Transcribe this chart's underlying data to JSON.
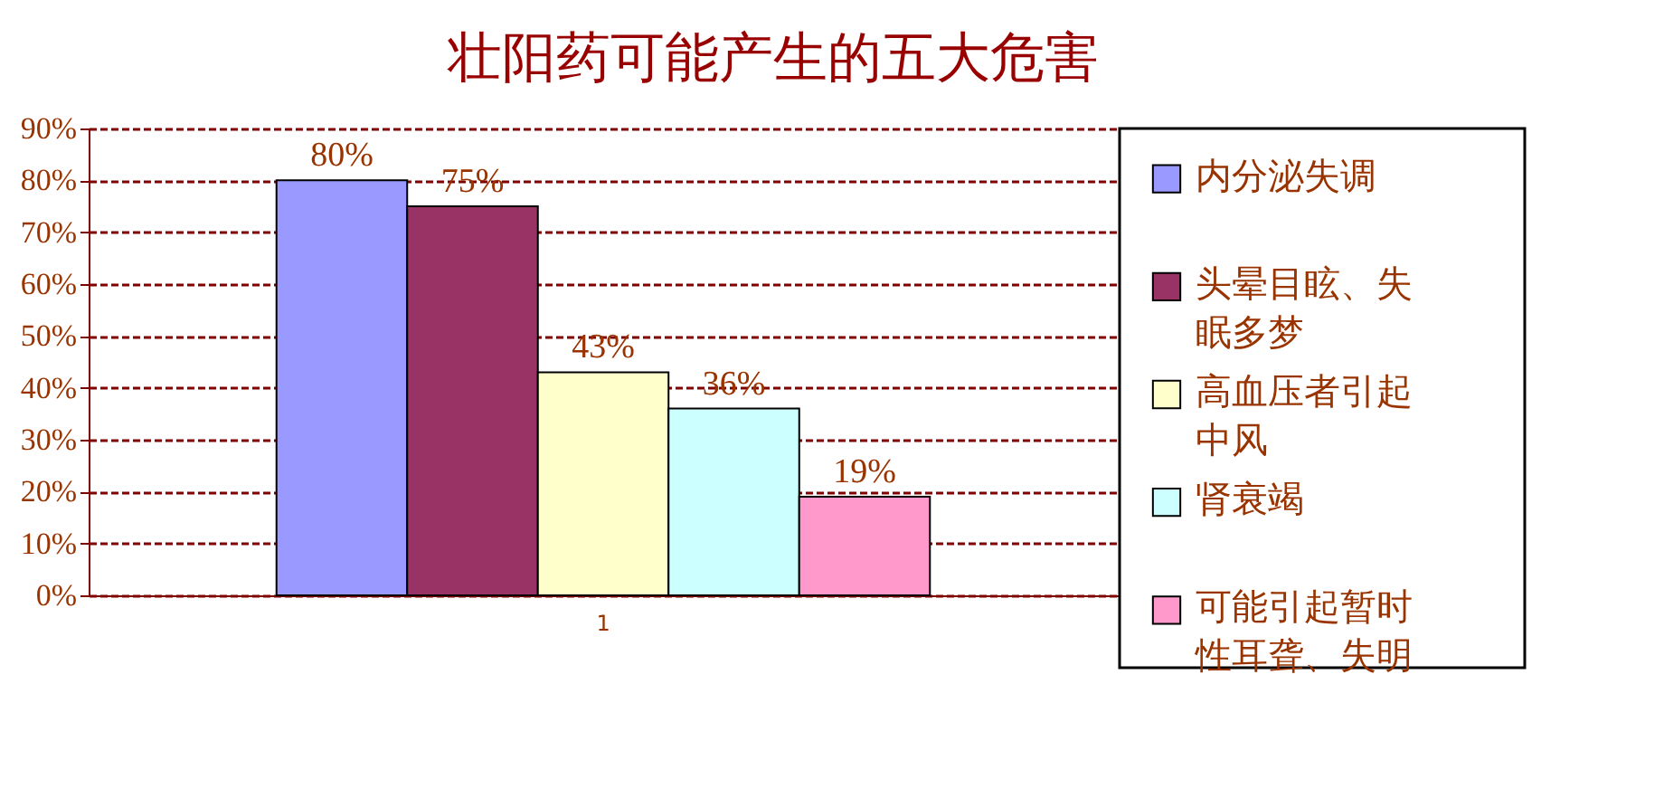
{
  "chart_data": {
    "type": "bar",
    "title": "壮阳药可能产生的五大危害",
    "categories": [
      "1"
    ],
    "series": [
      {
        "name": "内分泌失调",
        "color": "#9999ff",
        "values": [
          80
        ],
        "value_labels": [
          "80%"
        ]
      },
      {
        "name": "头晕目眩、失眠多梦",
        "color": "#993366",
        "values": [
          75
        ],
        "value_labels": [
          "75%"
        ]
      },
      {
        "name": "高血压者引起中风",
        "color": "#ffffcc",
        "values": [
          43
        ],
        "value_labels": [
          "43%"
        ]
      },
      {
        "name": "肾衰竭",
        "color": "#ccffff",
        "values": [
          36
        ],
        "value_labels": [
          "36%"
        ]
      },
      {
        "name": "可能引起暂时性耳聋、失明",
        "color": "#ff99cc",
        "values": [
          19
        ],
        "value_labels": [
          "19%"
        ]
      }
    ],
    "ylim": [
      0,
      90
    ],
    "yticks": [
      {
        "value": 0,
        "label": "0%"
      },
      {
        "value": 10,
        "label": "10%"
      },
      {
        "value": 20,
        "label": "20%"
      },
      {
        "value": 30,
        "label": "30%"
      },
      {
        "value": 40,
        "label": "40%"
      },
      {
        "value": 50,
        "label": "50%"
      },
      {
        "value": 60,
        "label": "60%"
      },
      {
        "value": 70,
        "label": "70%"
      },
      {
        "value": 80,
        "label": "80%"
      },
      {
        "value": 90,
        "label": "90%"
      }
    ],
    "grid": "y",
    "legend": "right"
  }
}
